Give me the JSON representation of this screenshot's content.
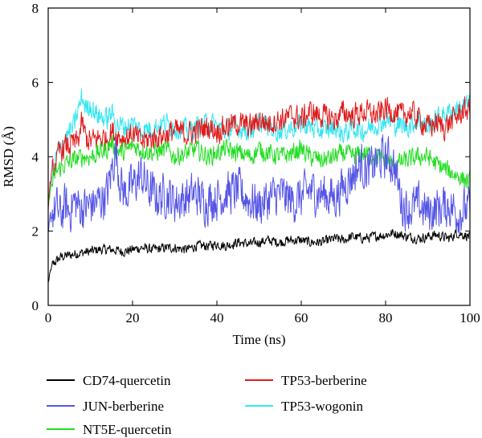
{
  "chart_data": {
    "type": "line",
    "title": "",
    "xlabel": "Time (ns)",
    "ylabel": "RMSD (Å)",
    "xlim": [
      0,
      100
    ],
    "ylim": [
      0,
      8
    ],
    "xticks": [
      0,
      20,
      40,
      60,
      80,
      100
    ],
    "yticks": [
      0,
      2,
      4,
      6,
      8
    ],
    "grid": false,
    "legend_position": "bottom",
    "series": [
      {
        "name": "CD74-quercetin",
        "color": "#000000",
        "x": [
          0,
          0.5,
          1,
          2,
          3,
          5,
          7,
          10,
          12,
          15,
          18,
          20,
          22,
          25,
          28,
          30,
          33,
          35,
          38,
          40,
          42,
          45,
          48,
          50,
          52,
          55,
          57,
          60,
          62,
          65,
          68,
          70,
          72,
          75,
          77,
          80,
          82,
          85,
          88,
          90,
          92,
          95,
          97,
          100
        ],
        "values": [
          0.6,
          0.9,
          1.1,
          1.2,
          1.3,
          1.35,
          1.4,
          1.45,
          1.5,
          1.5,
          1.45,
          1.5,
          1.55,
          1.5,
          1.55,
          1.55,
          1.5,
          1.6,
          1.6,
          1.65,
          1.6,
          1.7,
          1.65,
          1.7,
          1.75,
          1.7,
          1.75,
          1.75,
          1.7,
          1.7,
          1.8,
          1.75,
          1.85,
          1.8,
          1.85,
          1.9,
          1.95,
          1.85,
          1.8,
          1.85,
          1.9,
          1.8,
          1.95,
          1.85
        ],
        "noise": 0.18
      },
      {
        "name": "JUN-berberine",
        "color": "#5555e6",
        "x": [
          0,
          0.5,
          1,
          2,
          3,
          4,
          5,
          6,
          8,
          10,
          12,
          14,
          15,
          16,
          17,
          18,
          20,
          22,
          24,
          26,
          28,
          30,
          33,
          35,
          37,
          40,
          42,
          45,
          48,
          50,
          53,
          55,
          58,
          60,
          62,
          65,
          68,
          70,
          72,
          74,
          76,
          78,
          80,
          82,
          84,
          86,
          88,
          90,
          92,
          95,
          97,
          100
        ],
        "values": [
          1.8,
          2.3,
          2.5,
          2.6,
          2.4,
          2.7,
          2.5,
          2.8,
          2.6,
          2.7,
          2.8,
          3.0,
          3.6,
          4.2,
          3.4,
          3.0,
          3.2,
          3.5,
          3.1,
          2.9,
          3.0,
          2.8,
          2.9,
          3.0,
          2.8,
          2.9,
          3.0,
          3.1,
          2.8,
          2.7,
          2.9,
          3.0,
          2.8,
          2.9,
          3.1,
          3.0,
          2.9,
          3.2,
          3.5,
          3.8,
          3.6,
          3.9,
          4.0,
          3.8,
          2.7,
          2.6,
          2.7,
          2.5,
          2.6,
          2.7,
          2.5,
          2.6
        ],
        "noise": 0.8
      },
      {
        "name": "NT5E-quercetin",
        "color": "#22dd22",
        "x": [
          0,
          0.5,
          1,
          2,
          4,
          6,
          8,
          10,
          12,
          14,
          15,
          16,
          18,
          20,
          22,
          25,
          28,
          30,
          33,
          35,
          38,
          40,
          42,
          45,
          48,
          50,
          52,
          55,
          58,
          60,
          62,
          65,
          68,
          70,
          72,
          75,
          78,
          80,
          82,
          85,
          88,
          90,
          92,
          95,
          97,
          100
        ],
        "values": [
          2.7,
          3.1,
          3.3,
          3.6,
          3.8,
          3.9,
          4.0,
          4.0,
          4.1,
          4.2,
          4.4,
          4.2,
          4.1,
          4.3,
          4.2,
          4.1,
          4.2,
          4.0,
          4.1,
          4.2,
          4.0,
          4.1,
          4.2,
          4.1,
          4.0,
          4.2,
          4.1,
          4.0,
          4.1,
          4.2,
          4.0,
          3.9,
          4.0,
          4.1,
          4.0,
          4.1,
          4.0,
          3.9,
          3.8,
          3.9,
          4.0,
          4.0,
          3.8,
          3.6,
          3.5,
          3.3
        ],
        "noise": 0.35
      },
      {
        "name": "TP53-berberine",
        "color": "#e11a1a",
        "x": [
          0,
          0.5,
          1,
          2,
          3,
          5,
          7,
          8,
          9,
          10,
          12,
          14,
          15,
          16,
          18,
          20,
          22,
          25,
          28,
          30,
          33,
          35,
          38,
          40,
          42,
          45,
          48,
          50,
          52,
          55,
          58,
          60,
          62,
          65,
          68,
          70,
          72,
          75,
          78,
          80,
          82,
          84,
          86,
          88,
          90,
          92,
          94,
          96,
          98,
          100
        ],
        "values": [
          2.7,
          3.3,
          3.6,
          3.9,
          4.2,
          4.3,
          4.4,
          4.9,
          4.5,
          4.4,
          4.5,
          4.5,
          4.7,
          4.6,
          4.5,
          4.6,
          4.4,
          4.5,
          4.6,
          4.7,
          4.6,
          4.7,
          4.8,
          4.7,
          4.8,
          4.9,
          4.8,
          5.0,
          4.9,
          5.0,
          5.1,
          5.0,
          5.2,
          5.1,
          5.0,
          5.2,
          5.1,
          5.2,
          5.1,
          5.3,
          5.2,
          5.1,
          5.2,
          5.0,
          4.8,
          4.9,
          4.8,
          5.0,
          5.2,
          5.3
        ],
        "noise": 0.45
      },
      {
        "name": "TP53-wogonin",
        "color": "#33e6f2",
        "x": [
          0,
          1,
          2,
          4,
          6,
          7,
          8,
          9,
          10,
          11,
          12,
          14,
          15,
          16,
          18,
          20,
          22,
          25,
          28,
          30,
          33,
          35,
          38,
          40,
          42,
          45,
          48,
          50,
          52,
          55,
          58,
          60,
          62,
          65,
          68,
          70,
          72,
          75,
          78,
          80,
          82,
          85,
          88,
          90,
          92,
          95,
          97,
          100
        ],
        "values": [
          2.8,
          3.5,
          4.0,
          4.5,
          4.8,
          5.2,
          5.6,
          5.3,
          5.4,
          5.2,
          5.1,
          5.0,
          5.2,
          4.9,
          4.8,
          4.9,
          4.7,
          4.8,
          4.9,
          4.8,
          4.7,
          4.8,
          4.9,
          4.8,
          4.7,
          4.8,
          4.7,
          4.9,
          4.8,
          4.7,
          4.8,
          4.9,
          4.8,
          4.7,
          4.8,
          4.6,
          4.8,
          4.7,
          4.9,
          5.0,
          4.9,
          4.8,
          5.0,
          4.8,
          5.0,
          5.2,
          5.3,
          5.4
        ],
        "noise": 0.4
      }
    ]
  }
}
